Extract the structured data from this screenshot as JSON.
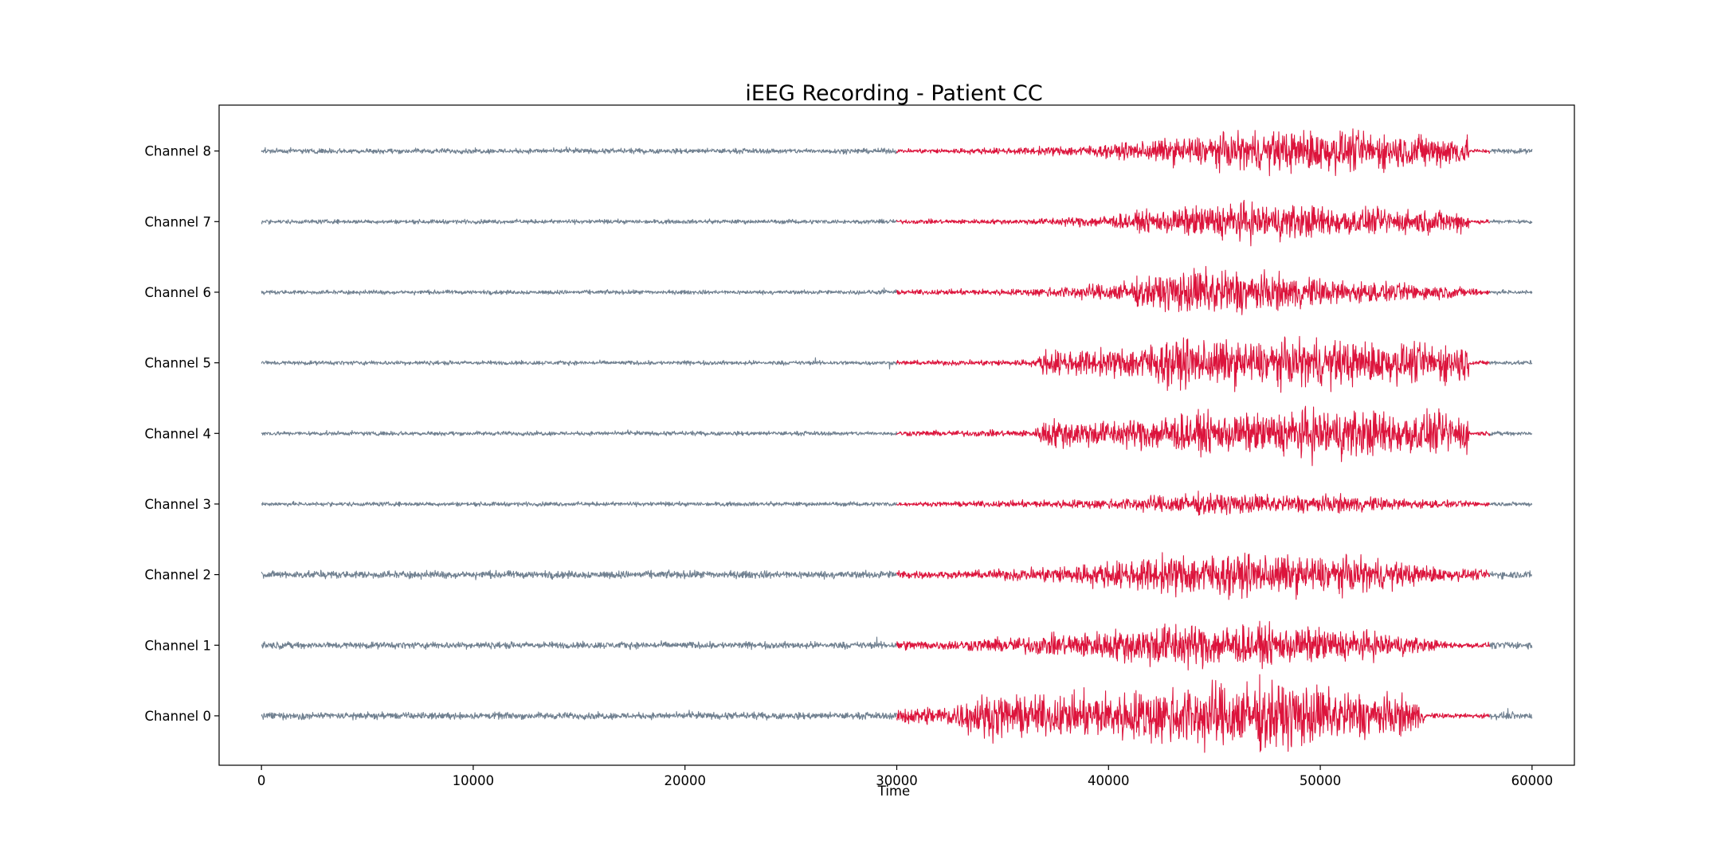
{
  "chart_data": {
    "type": "line",
    "title": "iEEG Recording - Patient CC",
    "xlabel": "Time",
    "ylabel": "",
    "xlim": [
      -2000,
      62000
    ],
    "x_ticks": [
      0,
      10000,
      20000,
      30000,
      40000,
      50000,
      60000
    ],
    "x_tick_labels": [
      "0",
      "10000",
      "20000",
      "30000",
      "40000",
      "50000",
      "60000"
    ],
    "y_tick_labels": [
      "Channel 0",
      "Channel 1",
      "Channel 2",
      "Channel 3",
      "Channel 4",
      "Channel 5",
      "Channel 6",
      "Channel 7",
      "Channel 8"
    ],
    "grid": false,
    "legend": "none",
    "x_range": [
      0,
      60000
    ],
    "highlight_range": [
      30000,
      58000
    ],
    "colors": {
      "baseline": "#708090",
      "seizure": "#dc143c",
      "frame": "#000000"
    },
    "series": [
      {
        "channel": "Channel 0",
        "baseline_amp": 0.08,
        "envelope": [
          [
            30000,
            0.18
          ],
          [
            32500,
            0.25
          ],
          [
            34000,
            0.5
          ],
          [
            37000,
            0.45
          ],
          [
            40000,
            0.55
          ],
          [
            44000,
            0.75
          ],
          [
            48000,
            0.8
          ],
          [
            52000,
            0.55
          ],
          [
            54500,
            0.4
          ],
          [
            55000,
            0.06
          ],
          [
            58000,
            0.06
          ]
        ]
      },
      {
        "channel": "Channel 1",
        "baseline_amp": 0.08,
        "envelope": [
          [
            30000,
            0.12
          ],
          [
            32000,
            0.1
          ],
          [
            36000,
            0.2
          ],
          [
            40000,
            0.35
          ],
          [
            43000,
            0.55
          ],
          [
            47000,
            0.45
          ],
          [
            50000,
            0.4
          ],
          [
            53000,
            0.3
          ],
          [
            56000,
            0.08
          ],
          [
            58000,
            0.06
          ]
        ]
      },
      {
        "channel": "Channel 2",
        "baseline_amp": 0.09,
        "envelope": [
          [
            30000,
            0.1
          ],
          [
            33000,
            0.08
          ],
          [
            36000,
            0.15
          ],
          [
            40000,
            0.3
          ],
          [
            44000,
            0.5
          ],
          [
            48000,
            0.45
          ],
          [
            52000,
            0.4
          ],
          [
            56000,
            0.15
          ],
          [
            58000,
            0.1
          ]
        ]
      },
      {
        "channel": "Channel 3",
        "baseline_amp": 0.05,
        "envelope": [
          [
            30000,
            0.04
          ],
          [
            36000,
            0.08
          ],
          [
            40000,
            0.12
          ],
          [
            44000,
            0.25
          ],
          [
            47000,
            0.22
          ],
          [
            51000,
            0.2
          ],
          [
            55000,
            0.1
          ],
          [
            58000,
            0.05
          ]
        ]
      },
      {
        "channel": "Channel 4",
        "baseline_amp": 0.05,
        "envelope": [
          [
            30000,
            0.06
          ],
          [
            36500,
            0.08
          ],
          [
            37000,
            0.35
          ],
          [
            40000,
            0.3
          ],
          [
            43000,
            0.45
          ],
          [
            47000,
            0.45
          ],
          [
            50000,
            0.6
          ],
          [
            54000,
            0.5
          ],
          [
            57000,
            0.45
          ],
          [
            57000,
            0.05
          ],
          [
            58000,
            0.05
          ]
        ]
      },
      {
        "channel": "Channel 5",
        "baseline_amp": 0.05,
        "envelope": [
          [
            30000,
            0.05
          ],
          [
            36500,
            0.08
          ],
          [
            37000,
            0.3
          ],
          [
            40000,
            0.3
          ],
          [
            43000,
            0.55
          ],
          [
            47000,
            0.5
          ],
          [
            50000,
            0.55
          ],
          [
            54000,
            0.45
          ],
          [
            57000,
            0.45
          ],
          [
            57000,
            0.05
          ],
          [
            58000,
            0.05
          ]
        ]
      },
      {
        "channel": "Channel 6",
        "baseline_amp": 0.05,
        "envelope": [
          [
            30000,
            0.05
          ],
          [
            36000,
            0.08
          ],
          [
            40000,
            0.2
          ],
          [
            43000,
            0.45
          ],
          [
            45000,
            0.6
          ],
          [
            48000,
            0.4
          ],
          [
            52000,
            0.25
          ],
          [
            56000,
            0.15
          ],
          [
            58000,
            0.06
          ]
        ]
      },
      {
        "channel": "Channel 7",
        "baseline_amp": 0.05,
        "envelope": [
          [
            30000,
            0.05
          ],
          [
            36000,
            0.06
          ],
          [
            40000,
            0.15
          ],
          [
            43000,
            0.3
          ],
          [
            46000,
            0.45
          ],
          [
            49000,
            0.4
          ],
          [
            52000,
            0.3
          ],
          [
            57000,
            0.25
          ],
          [
            57000,
            0.05
          ],
          [
            58000,
            0.05
          ]
        ]
      },
      {
        "channel": "Channel 8",
        "baseline_amp": 0.06,
        "envelope": [
          [
            30000,
            0.05
          ],
          [
            36000,
            0.08
          ],
          [
            40000,
            0.15
          ],
          [
            43000,
            0.3
          ],
          [
            47000,
            0.45
          ],
          [
            50000,
            0.5
          ],
          [
            54000,
            0.4
          ],
          [
            57000,
            0.35
          ],
          [
            57000,
            0.05
          ],
          [
            58000,
            0.05
          ]
        ]
      }
    ]
  }
}
